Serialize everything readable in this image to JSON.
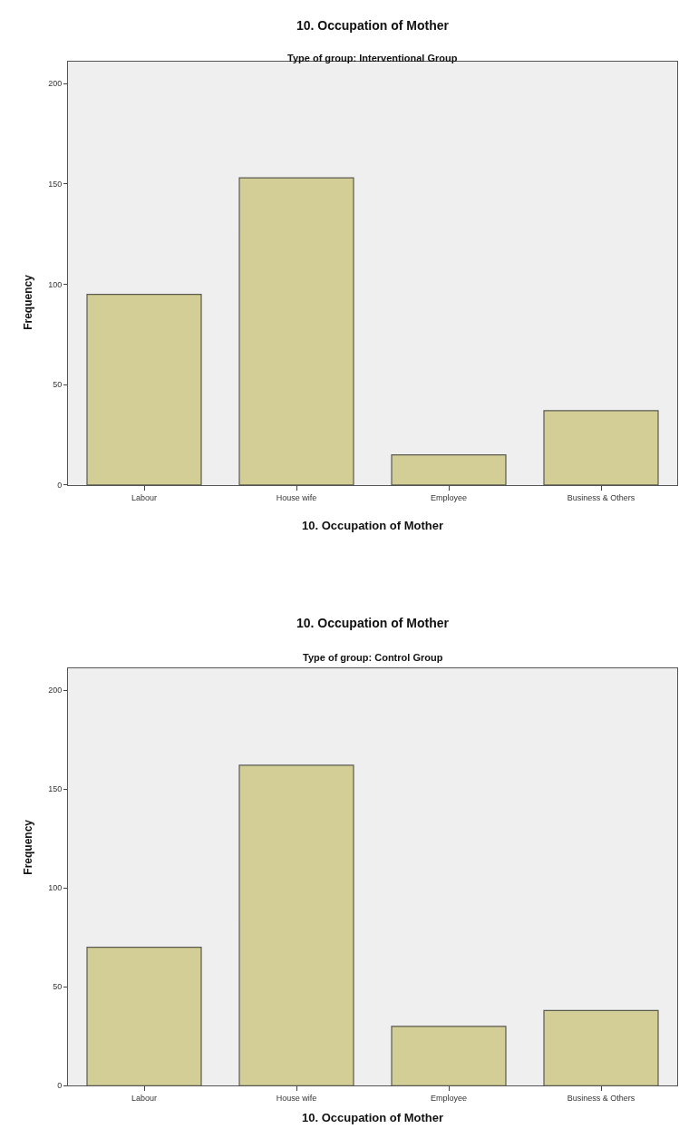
{
  "chart_data": [
    {
      "type": "bar",
      "title": "10. Occupation of Mother",
      "subtitle": "Type of group: Interventional Group",
      "xlabel": "10. Occupation of Mother",
      "ylabel": "Frequency",
      "categories": [
        "Labour",
        "House wife",
        "Employee",
        "Business & Others"
      ],
      "values": [
        95,
        153,
        15,
        37
      ],
      "color": "#d3ce96",
      "ylim": [
        0,
        211
      ],
      "yticks": [
        0,
        50,
        100,
        150,
        200
      ],
      "grid": false
    },
    {
      "type": "bar",
      "title": "10. Occupation of Mother",
      "subtitle": "Type of group: Control Group",
      "xlabel": "10. Occupation of Mother",
      "ylabel": "Frequency",
      "categories": [
        "Labour",
        "House wife",
        "Employee",
        "Business & Others"
      ],
      "values": [
        70,
        162,
        30,
        38
      ],
      "color": "#d3ce96",
      "ylim": [
        0,
        211
      ],
      "yticks": [
        0,
        50,
        100,
        150,
        200
      ],
      "grid": false
    }
  ]
}
